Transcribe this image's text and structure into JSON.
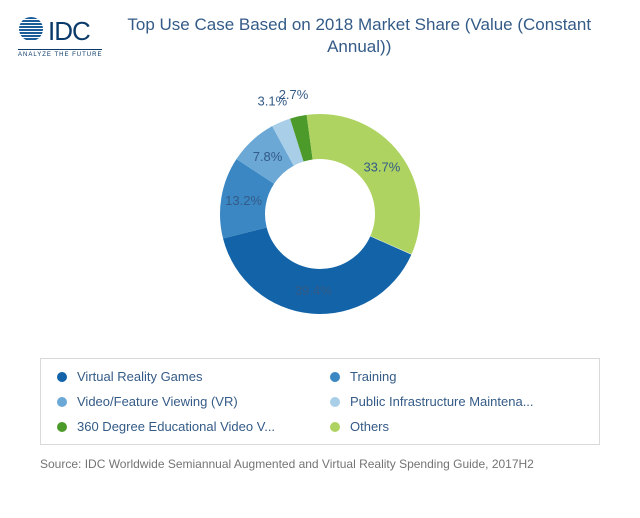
{
  "logo": {
    "text": "IDC",
    "tagline": "ANALYZE THE FUTURE",
    "globe_stripes_color": "#1a5b99",
    "text_color": "#0a3a6a"
  },
  "title": "Top Use Case Based on 2018 Market Share (Value (Constant Annual))",
  "chart": {
    "type": "donut",
    "inner_radius_ratio": 0.55,
    "outer_radius": 100,
    "start_angle_deg": 24,
    "direction": "clockwise",
    "label_fontsize": 13,
    "label_color": "#345b87",
    "background_color": "#ffffff",
    "slices": [
      {
        "name": "Virtual Reality Games",
        "percent": 39.4,
        "color": "#1263a8",
        "label": "39.4%"
      },
      {
        "name": "Training",
        "percent": 13.2,
        "color": "#3a87c4",
        "label": "13.2%"
      },
      {
        "name": "Video/Feature Viewing (VR)",
        "percent": 7.8,
        "color": "#6ba8d6",
        "label": "7.8%"
      },
      {
        "name": "Public Infrastructure Maintena...",
        "percent": 3.1,
        "color": "#a8cee8",
        "label": "3.1%"
      },
      {
        "name": "360 Degree Educational Video V...",
        "percent": 2.7,
        "color": "#4c9a2a",
        "label": "2.7%"
      },
      {
        "name": "Others",
        "percent": 33.7,
        "color": "#aed361",
        "label": "33.7%"
      }
    ]
  },
  "legend": {
    "border_color": "#d9d9d9",
    "text_color": "#345b87",
    "fontsize": 13,
    "items": [
      {
        "label": "Virtual Reality Games",
        "color": "#1263a8"
      },
      {
        "label": "Training",
        "color": "#3a87c4"
      },
      {
        "label": "Video/Feature Viewing (VR)",
        "color": "#6ba8d6"
      },
      {
        "label": "Public Infrastructure Maintena...",
        "color": "#a8cee8"
      },
      {
        "label": "360 Degree Educational Video V...",
        "color": "#4c9a2a"
      },
      {
        "label": "Others",
        "color": "#aed361"
      }
    ]
  },
  "source": "Source: IDC Worldwide Semiannual Augmented and Virtual Reality Spending Guide, 2017H2"
}
